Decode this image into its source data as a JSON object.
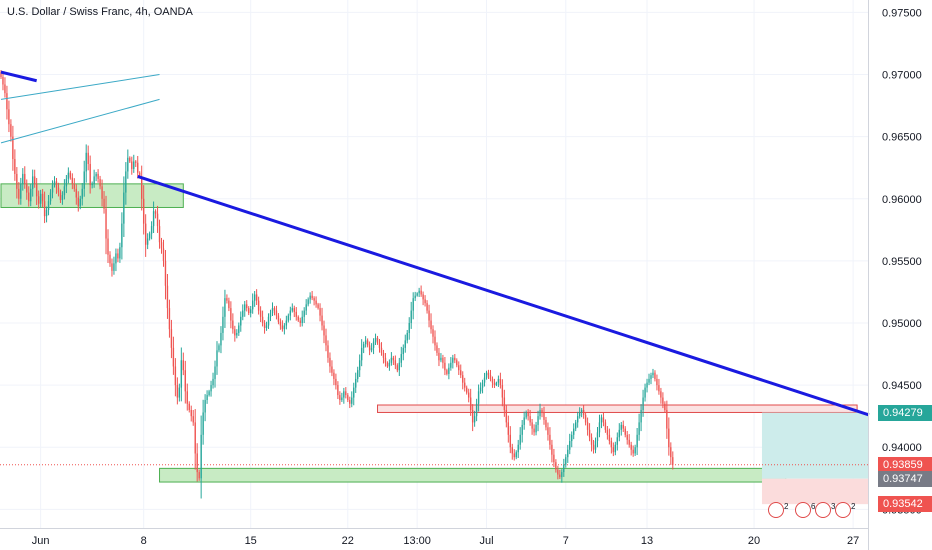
{
  "header": {
    "title": "U.S. Dollar / Swiss Franc, 4h, OANDA"
  },
  "colors": {
    "up": "#26a69a",
    "down": "#ef5350",
    "trendline": "#1a1ae0",
    "channel": "#3ba9c6",
    "zone_green_fill": "#c8ebc4",
    "zone_green_border": "#4caf50",
    "zone_red_fill": "#fbe2e2",
    "zone_red_border": "#e04a4a",
    "target_fill": "#cdeceb",
    "stop_fill": "#fbdcdc"
  },
  "price_labels": {
    "target": {
      "text": "0.94279",
      "color": "#26a69a"
    },
    "current": {
      "text": "0.93859",
      "color": "#ef5350"
    },
    "entry": {
      "text": "0.93747",
      "color": "#787b86"
    },
    "stop": {
      "text": "0.93542",
      "color": "#ef5350"
    }
  },
  "events": [
    {
      "count": "2",
      "icon": "economic-event-icon"
    },
    {
      "count": "6",
      "icon": "economic-event-icon"
    },
    {
      "count": "3",
      "icon": "economic-event-icon"
    },
    {
      "count": "2",
      "icon": "economic-event-icon"
    }
  ],
  "chart_data": {
    "type": "candlestick",
    "title": "U.S. Dollar / Swiss Franc, 4h, OANDA",
    "symbol": "USDCHF",
    "timeframe": "4h",
    "ylim": [
      0.9335,
      0.976
    ],
    "y_ticks": [
      "0.97500",
      "0.97000",
      "0.96500",
      "0.96000",
      "0.95500",
      "0.95000",
      "0.94500",
      "0.94000",
      "0.93500"
    ],
    "x_ticks": [
      "Jun",
      "8",
      "15",
      "22",
      "13:00",
      "Jul",
      "7",
      "13",
      "20",
      "27"
    ],
    "x_tick_index": [
      20,
      72,
      126,
      175,
      210,
      245,
      285,
      326,
      380,
      430
    ],
    "bars_visible": 438,
    "closes": [
      0.9698,
      0.9692,
      0.9685,
      0.9672,
      0.966,
      0.965,
      0.9632,
      0.962,
      0.9608,
      0.96,
      0.9612,
      0.962,
      0.9612,
      0.9605,
      0.9598,
      0.9608,
      0.9618,
      0.9612,
      0.9602,
      0.9596,
      0.9604,
      0.9598,
      0.9586,
      0.9591,
      0.9598,
      0.9605,
      0.9611,
      0.9614,
      0.9609,
      0.9605,
      0.9599,
      0.9603,
      0.961,
      0.9616,
      0.9621,
      0.9617,
      0.9612,
      0.9608,
      0.9601,
      0.9594,
      0.96,
      0.9608,
      0.9622,
      0.9637,
      0.9628,
      0.9611,
      0.9612,
      0.9618,
      0.962,
      0.9616,
      0.961,
      0.96,
      0.9592,
      0.9568,
      0.9555,
      0.9548,
      0.9542,
      0.9548,
      0.9556,
      0.9552,
      0.9561,
      0.958,
      0.9605,
      0.9622,
      0.9633,
      0.963,
      0.9624,
      0.963,
      0.9629,
      0.9621,
      0.9618,
      0.96,
      0.958,
      0.9563,
      0.9568,
      0.9572,
      0.9578,
      0.959,
      0.9588,
      0.9578,
      0.9565,
      0.956,
      0.955,
      0.953,
      0.9512,
      0.9495,
      0.948,
      0.9465,
      0.945,
      0.944,
      0.9448,
      0.947,
      0.9462,
      0.9445,
      0.9435,
      0.943,
      0.9425,
      0.942,
      0.9395,
      0.938,
      0.9375,
      0.941,
      0.9428,
      0.9438,
      0.9442,
      0.9445,
      0.945,
      0.9455,
      0.9465,
      0.9478,
      0.9482,
      0.9492,
      0.9505,
      0.952,
      0.9518,
      0.9512,
      0.9502,
      0.9495,
      0.949,
      0.9492,
      0.9498,
      0.9505,
      0.951,
      0.9515,
      0.9512,
      0.9508,
      0.9511,
      0.9518,
      0.9523,
      0.9518,
      0.951,
      0.9505,
      0.95,
      0.9496,
      0.9498,
      0.9505,
      0.9508,
      0.9512,
      0.951,
      0.9506,
      0.9501,
      0.9498,
      0.9495,
      0.9498,
      0.9502,
      0.9506,
      0.951,
      0.9512,
      0.9509,
      0.9505,
      0.9502,
      0.95,
      0.9505,
      0.951,
      0.9515,
      0.9519,
      0.9522,
      0.952,
      0.9518,
      0.9515,
      0.9512,
      0.9506,
      0.9498,
      0.949,
      0.9482,
      0.9472,
      0.9465,
      0.946,
      0.9455,
      0.945,
      0.9442,
      0.9438,
      0.944,
      0.9445,
      0.9442,
      0.9438,
      0.9435,
      0.944,
      0.9448,
      0.9455,
      0.9462,
      0.947,
      0.948,
      0.9483,
      0.9486,
      0.9482,
      0.9478,
      0.948,
      0.9485,
      0.9488,
      0.9484,
      0.948,
      0.9476,
      0.9472,
      0.9468,
      0.9465,
      0.9468,
      0.9472,
      0.947,
      0.9466,
      0.9462,
      0.9468,
      0.9475,
      0.948,
      0.9486,
      0.9492,
      0.95,
      0.951,
      0.952,
      0.9522,
      0.9524,
      0.9526,
      0.9523,
      0.9519,
      0.9516,
      0.951,
      0.9502,
      0.9495,
      0.9489,
      0.9482,
      0.9476,
      0.947,
      0.9472,
      0.9468,
      0.9462,
      0.9459,
      0.9464,
      0.9468,
      0.9472,
      0.947,
      0.9466,
      0.9462,
      0.9458,
      0.9452,
      0.9448,
      0.9444,
      0.944,
      0.943,
      0.942,
      0.9425,
      0.9435,
      0.9445,
      0.9448,
      0.9452,
      0.9456,
      0.946,
      0.9458,
      0.9455,
      0.9452,
      0.945,
      0.9452,
      0.9455,
      0.945,
      0.944,
      0.943,
      0.942,
      0.941,
      0.94,
      0.9395,
      0.9392,
      0.9396,
      0.9402,
      0.941,
      0.9418,
      0.9424,
      0.9428,
      0.9425,
      0.942,
      0.9415,
      0.9412,
      0.9418,
      0.9425,
      0.943,
      0.9428,
      0.9422,
      0.9416,
      0.941,
      0.9402,
      0.9394,
      0.9388,
      0.9382,
      0.9378,
      0.9376,
      0.938,
      0.9386,
      0.9392,
      0.9398,
      0.9405,
      0.941,
      0.9415,
      0.942,
      0.9425,
      0.9428,
      0.943,
      0.9426,
      0.942,
      0.9414,
      0.9408,
      0.9402,
      0.9398,
      0.9405,
      0.9412,
      0.942,
      0.9424,
      0.942,
      0.9414,
      0.941,
      0.9405,
      0.94,
      0.9396,
      0.9402,
      0.9408,
      0.9414,
      0.9418,
      0.9415,
      0.941,
      0.9406,
      0.9402,
      0.9398,
      0.9395,
      0.94,
      0.941,
      0.942,
      0.943,
      0.944,
      0.9448,
      0.9452,
      0.9455,
      0.9458,
      0.946,
      0.9455,
      0.945,
      0.9445,
      0.944,
      0.9435,
      0.943,
      0.9415,
      0.94,
      0.9392,
      0.9386
    ],
    "trendline_main": {
      "from": [
        69,
        0.9618
      ],
      "to": [
        438,
        0.9426
      ]
    },
    "trendline_upper_left": {
      "from": [
        0,
        0.9702
      ],
      "to": [
        18,
        0.9695
      ]
    },
    "channel_upper": {
      "from": [
        0,
        0.968
      ],
      "to": [
        80,
        0.97
      ]
    },
    "channel_lower": {
      "from": [
        0,
        0.9645
      ],
      "to": [
        80,
        0.968
      ]
    },
    "zone_green_top_left": {
      "x": [
        0,
        92
      ],
      "y": [
        0.9593,
        0.9612
      ]
    },
    "zone_green_bottom": {
      "x": [
        80,
        396
      ],
      "y": [
        0.9372,
        0.9383
      ]
    },
    "zone_red": {
      "x": [
        190,
        432
      ],
      "y": [
        0.9428,
        0.9434
      ]
    },
    "position_target": {
      "x": [
        384,
        438
      ],
      "y": [
        0.93747,
        0.94279
      ]
    },
    "position_stop": {
      "x": [
        384,
        438
      ],
      "y": [
        0.93542,
        0.93747
      ]
    },
    "current_price": 0.93859
  }
}
